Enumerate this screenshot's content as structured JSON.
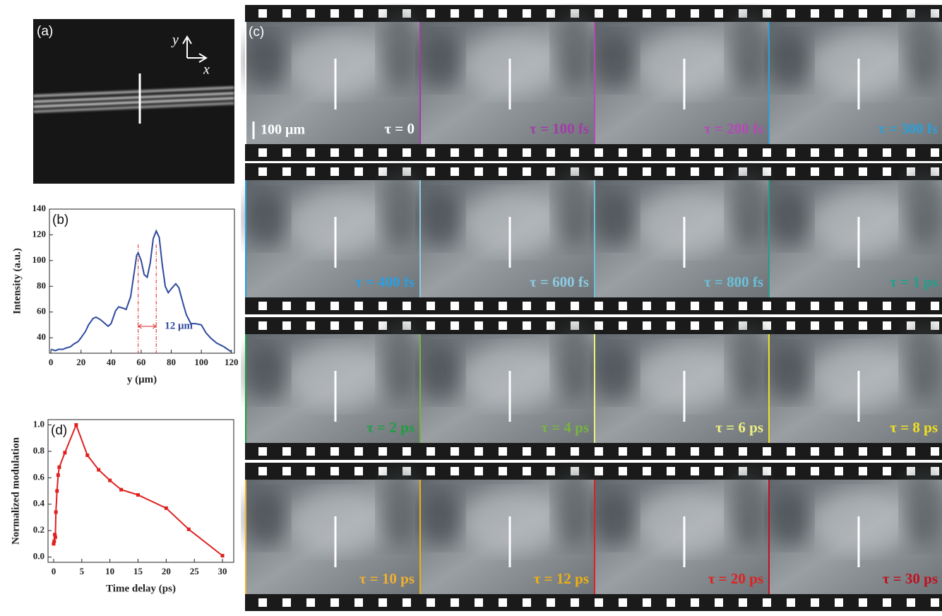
{
  "panel_a": {
    "label": "(a)",
    "y_axis": "y",
    "x_axis": "x"
  },
  "chart_data": [
    {
      "type": "line",
      "label": "(b)",
      "xlabel": "y (μm)",
      "ylabel": "Intensity (a.u.)",
      "color": "#2e4a9e",
      "x": [
        0,
        3,
        5,
        8,
        10,
        13,
        15,
        18,
        20,
        23,
        25,
        28,
        30,
        33,
        35,
        38,
        40,
        43,
        45,
        48,
        50,
        53,
        55,
        57,
        58,
        60,
        62,
        64,
        66,
        68,
        70,
        72,
        74,
        76,
        78,
        80,
        83,
        85,
        88,
        90,
        93,
        96,
        100,
        103,
        106,
        110,
        115,
        120
      ],
      "values": [
        31,
        30,
        31,
        31,
        32,
        33,
        35,
        37,
        40,
        45,
        50,
        55,
        56,
        54,
        52,
        49,
        51,
        61,
        64,
        63,
        62,
        72,
        88,
        104,
        106,
        100,
        89,
        87,
        98,
        117,
        123,
        118,
        97,
        80,
        75,
        78,
        82,
        79,
        66,
        58,
        51,
        51,
        50,
        44,
        40,
        36,
        33,
        29
      ],
      "xlim": [
        -1,
        122
      ],
      "ylim": [
        28,
        140
      ],
      "xticks": [
        0,
        20,
        40,
        60,
        80,
        100,
        120
      ],
      "yticks": [
        40,
        60,
        80,
        100,
        120,
        140
      ],
      "annotation": "12 μm",
      "annotation_x": [
        58,
        70
      ],
      "annotation_color": "#e02020",
      "markers": false
    },
    {
      "type": "line",
      "label": "(d)",
      "xlabel": "Time delay (ps)",
      "ylabel": "Normalized modulation",
      "color": "#e02020",
      "x": [
        0,
        0.1,
        0.2,
        0.3,
        0.4,
        0.6,
        0.8,
        1,
        2,
        4,
        6,
        8,
        10,
        12,
        15,
        20,
        24,
        30
      ],
      "values": [
        0.1,
        0.12,
        0.17,
        0.15,
        0.34,
        0.5,
        0.62,
        0.68,
        0.79,
        1.0,
        0.77,
        0.66,
        0.58,
        0.51,
        0.47,
        0.37,
        0.21,
        0.01
      ],
      "xlim": [
        -1,
        32
      ],
      "ylim": [
        -0.04,
        1.04
      ],
      "xticks": [
        0,
        5,
        10,
        15,
        20,
        25,
        30
      ],
      "yticks": [
        {
          "value": 0,
          "label": "0.0"
        },
        0.2,
        0.4,
        0.6,
        0.8,
        {
          "value": 1,
          "label": "1.0"
        }
      ],
      "markers": true
    }
  ],
  "panel_c": {
    "label": "(c)",
    "scale_bar": "100 μm",
    "frames": [
      {
        "label": "τ = 0",
        "color": "#ffffff"
      },
      {
        "label": "τ = 100 fs",
        "color": "#a33ca8"
      },
      {
        "label": "τ = 200 fs",
        "color": "#b848b8"
      },
      {
        "label": "τ = 300 fs",
        "color": "#2aa0d8"
      },
      {
        "label": "τ = 400 fs",
        "color": "#2a9fe0"
      },
      {
        "label": "τ = 600 fs",
        "color": "#8ccbe2"
      },
      {
        "label": "τ = 800 fs",
        "color": "#6cc0d8"
      },
      {
        "label": "τ = 1 ps",
        "color": "#20a08c"
      },
      {
        "label": "τ = 2 ps",
        "color": "#1fa040"
      },
      {
        "label": "τ = 4 ps",
        "color": "#78b440"
      },
      {
        "label": "τ = 6 ps",
        "color": "#eef080"
      },
      {
        "label": "τ = 8 ps",
        "color": "#f0e020"
      },
      {
        "label": "τ = 10 ps",
        "color": "#f0b030"
      },
      {
        "label": "τ = 12 ps",
        "color": "#f0b010"
      },
      {
        "label": "τ = 20 ps",
        "color": "#e02020"
      },
      {
        "label": "τ = 30 ps",
        "color": "#c01020"
      }
    ]
  }
}
